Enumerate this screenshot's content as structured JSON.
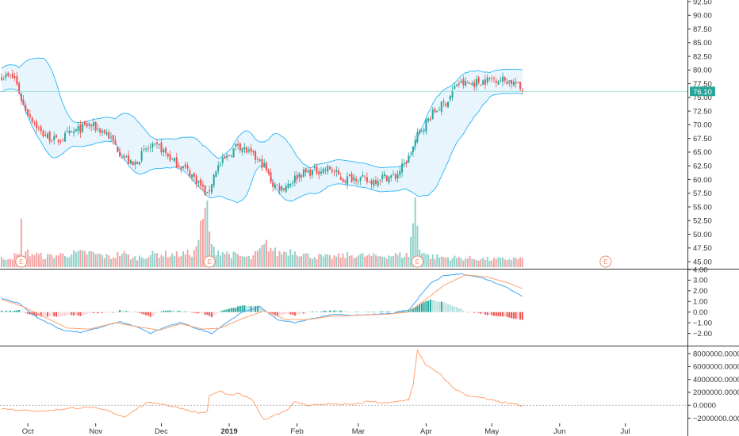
{
  "chart_data": {
    "type": "candlestick",
    "last_price_label": "76.10",
    "last_price": 76.1,
    "price_axis": {
      "ylim": [
        44.0,
        92.5
      ],
      "ticks": [
        "92.50",
        "90.00",
        "87.50",
        "85.00",
        "82.50",
        "80.00",
        "77.50",
        "75.00",
        "72.50",
        "70.00",
        "67.50",
        "65.00",
        "62.50",
        "60.00",
        "57.50",
        "55.00",
        "52.50",
        "50.00",
        "47.50",
        "45.00"
      ]
    },
    "macd_axis": {
      "ylim": [
        -3.0,
        4.0
      ],
      "ticks": [
        "4.00",
        "3.00",
        "2.00",
        "1.00",
        "0.00",
        "−1.00",
        "−2.00"
      ]
    },
    "indicator_axis": {
      "ylim": [
        -2800000,
        9000000
      ],
      "ticks": [
        "8000000.0000",
        "6000000.0000",
        "4000000.0000",
        "2000000.0000",
        "0.0000",
        "−2000000.0000"
      ]
    },
    "x_labels": [
      {
        "label": "Oct",
        "day": 12,
        "bold": false
      },
      {
        "label": "Nov",
        "day": 43,
        "bold": false
      },
      {
        "label": "Dec",
        "day": 73,
        "bold": false
      },
      {
        "label": "2019",
        "day": 104,
        "bold": true
      },
      {
        "label": "Feb",
        "day": 135,
        "bold": false
      },
      {
        "label": "Mar",
        "day": 163,
        "bold": false
      },
      {
        "label": "Apr",
        "day": 194,
        "bold": false
      },
      {
        "label": "May",
        "day": 224,
        "bold": false
      },
      {
        "label": "Jun",
        "day": 255,
        "bold": false
      },
      {
        "label": "Jul",
        "day": 285,
        "bold": false
      }
    ],
    "earnings_markers": [
      {
        "label": "E",
        "day": 9
      },
      {
        "label": "E",
        "day": 95
      },
      {
        "label": "E",
        "day": 190
      },
      {
        "label": "E",
        "day": 276
      }
    ],
    "price_anchors": [
      [
        0,
        79.0
      ],
      [
        6,
        78.5
      ],
      [
        10,
        73.5
      ],
      [
        18,
        68.5
      ],
      [
        25,
        67.0
      ],
      [
        32,
        68.5
      ],
      [
        40,
        70.0
      ],
      [
        48,
        68.5
      ],
      [
        54,
        65.0
      ],
      [
        60,
        62.5
      ],
      [
        66,
        65.5
      ],
      [
        72,
        66.0
      ],
      [
        78,
        63.5
      ],
      [
        84,
        62.0
      ],
      [
        90,
        59.5
      ],
      [
        94,
        57.0
      ],
      [
        98,
        62.0
      ],
      [
        104,
        64.5
      ],
      [
        108,
        66.5
      ],
      [
        114,
        64.5
      ],
      [
        120,
        62.5
      ],
      [
        124,
        59.0
      ],
      [
        128,
        58.5
      ],
      [
        132,
        59.5
      ],
      [
        136,
        61.0
      ],
      [
        142,
        61.5
      ],
      [
        150,
        62.0
      ],
      [
        156,
        60.0
      ],
      [
        162,
        60.5
      ],
      [
        168,
        59.5
      ],
      [
        174,
        60.5
      ],
      [
        180,
        60.5
      ],
      [
        186,
        64.0
      ],
      [
        190,
        68.0
      ],
      [
        194,
        70.5
      ],
      [
        198,
        72.5
      ],
      [
        204,
        74.5
      ],
      [
        208,
        77.5
      ],
      [
        214,
        77.5
      ],
      [
        220,
        78.0
      ],
      [
        226,
        78.5
      ],
      [
        232,
        78.0
      ],
      [
        235,
        77.5
      ],
      [
        238,
        76.1
      ]
    ],
    "volume_anchors": [
      [
        0,
        1.5
      ],
      [
        8,
        2.2
      ],
      [
        9,
        7.4
      ],
      [
        10,
        2.8
      ],
      [
        20,
        1.9
      ],
      [
        30,
        2.4
      ],
      [
        40,
        2.6
      ],
      [
        50,
        1.8
      ],
      [
        55,
        2.6
      ],
      [
        60,
        1.6
      ],
      [
        70,
        2.4
      ],
      [
        80,
        2.3
      ],
      [
        88,
        2.6
      ],
      [
        94,
        11.0
      ],
      [
        96,
        3.4
      ],
      [
        104,
        2.4
      ],
      [
        114,
        1.6
      ],
      [
        121,
        4.1
      ],
      [
        126,
        2.5
      ],
      [
        133,
        3.1
      ],
      [
        140,
        2.1
      ],
      [
        150,
        1.8
      ],
      [
        160,
        2.2
      ],
      [
        170,
        2.0
      ],
      [
        180,
        2.2
      ],
      [
        186,
        2.2
      ],
      [
        189,
        11.5
      ],
      [
        191,
        3.6
      ],
      [
        195,
        2.0
      ],
      [
        205,
        1.7
      ],
      [
        215,
        1.6
      ],
      [
        225,
        1.4
      ],
      [
        238,
        1.6
      ]
    ],
    "macd_anchors": [
      [
        0,
        1.3
      ],
      [
        8,
        0.8
      ],
      [
        16,
        -0.5
      ],
      [
        28,
        -1.7
      ],
      [
        36,
        -1.9
      ],
      [
        44,
        -1.5
      ],
      [
        54,
        -0.9
      ],
      [
        62,
        -1.4
      ],
      [
        68,
        -2.0
      ],
      [
        76,
        -1.3
      ],
      [
        82,
        -1.0
      ],
      [
        90,
        -1.6
      ],
      [
        96,
        -2.0
      ],
      [
        102,
        -1.1
      ],
      [
        110,
        0.0
      ],
      [
        118,
        0.5
      ],
      [
        126,
        -0.7
      ],
      [
        134,
        -1.0
      ],
      [
        142,
        -0.6
      ],
      [
        152,
        -0.2
      ],
      [
        162,
        -0.3
      ],
      [
        172,
        -0.2
      ],
      [
        180,
        -0.1
      ],
      [
        186,
        0.2
      ],
      [
        190,
        1.2
      ],
      [
        196,
        2.7
      ],
      [
        202,
        3.4
      ],
      [
        210,
        3.6
      ],
      [
        220,
        3.2
      ],
      [
        230,
        2.4
      ],
      [
        238,
        1.5
      ]
    ],
    "signal_anchors": [
      [
        0,
        1.2
      ],
      [
        10,
        0.5
      ],
      [
        20,
        -0.5
      ],
      [
        30,
        -1.5
      ],
      [
        40,
        -1.6
      ],
      [
        52,
        -1.0
      ],
      [
        60,
        -1.3
      ],
      [
        72,
        -1.7
      ],
      [
        82,
        -1.1
      ],
      [
        92,
        -1.6
      ],
      [
        100,
        -1.5
      ],
      [
        110,
        -0.6
      ],
      [
        120,
        0.1
      ],
      [
        130,
        -0.7
      ],
      [
        140,
        -0.7
      ],
      [
        150,
        -0.4
      ],
      [
        162,
        -0.3
      ],
      [
        176,
        -0.2
      ],
      [
        186,
        0.0
      ],
      [
        194,
        1.2
      ],
      [
        202,
        2.5
      ],
      [
        212,
        3.5
      ],
      [
        222,
        3.3
      ],
      [
        232,
        2.7
      ],
      [
        238,
        2.2
      ]
    ],
    "indicator_anchors": [
      [
        0,
        -500000
      ],
      [
        10,
        -800000
      ],
      [
        20,
        -900000
      ],
      [
        30,
        -500000
      ],
      [
        40,
        -300000
      ],
      [
        48,
        -800000
      ],
      [
        56,
        -1800000
      ],
      [
        62,
        -500000
      ],
      [
        66,
        300000
      ],
      [
        70,
        400000
      ],
      [
        80,
        -300000
      ],
      [
        90,
        -1200000
      ],
      [
        94,
        -1000000
      ],
      [
        95,
        1500000
      ],
      [
        100,
        2200000
      ],
      [
        104,
        1500000
      ],
      [
        108,
        1800000
      ],
      [
        114,
        1000000
      ],
      [
        120,
        -2300000
      ],
      [
        124,
        -1600000
      ],
      [
        130,
        -800000
      ],
      [
        134,
        500000
      ],
      [
        140,
        0
      ],
      [
        150,
        200000
      ],
      [
        160,
        100000
      ],
      [
        168,
        600000
      ],
      [
        176,
        300000
      ],
      [
        186,
        900000
      ],
      [
        188,
        3000000
      ],
      [
        190,
        8500000
      ],
      [
        194,
        6200000
      ],
      [
        200,
        4900000
      ],
      [
        206,
        2800000
      ],
      [
        212,
        1600000
      ],
      [
        220,
        1100000
      ],
      [
        226,
        600000
      ],
      [
        232,
        300000
      ],
      [
        238,
        -100000
      ]
    ],
    "colors": {
      "up": "#26a69a",
      "down": "#ef5350",
      "volume_up": "#8fd2cb",
      "volume_down": "#f3a4a3",
      "band_line": "#29b6f6",
      "band_fill": "#e8f5fd",
      "macd_line": "#42a5f5",
      "signal_line": "#ffa270",
      "indicator_line": "#ffa270",
      "price_label_bg": "#26a69a",
      "price_line": "#8fd2cb",
      "axis": "#333333"
    }
  }
}
